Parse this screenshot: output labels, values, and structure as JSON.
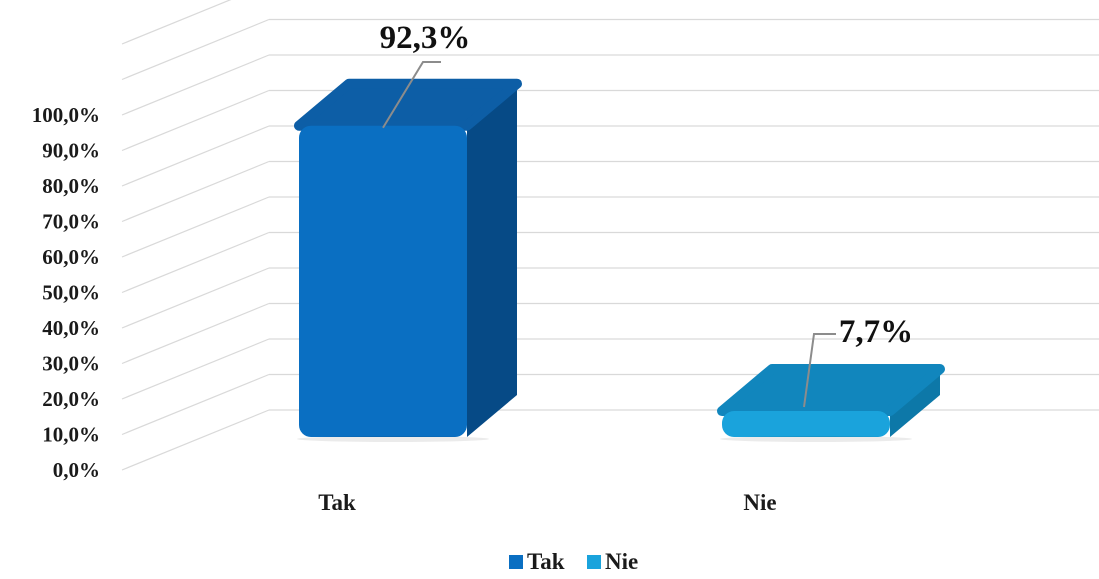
{
  "chart_data": {
    "type": "bar",
    "title": "",
    "xlabel": "",
    "ylabel": "",
    "categories": [
      "Tak",
      "Nie"
    ],
    "values": [
      92.3,
      7.7
    ],
    "value_labels": [
      "92,3%",
      "7,7%"
    ],
    "ylim": [
      0,
      100
    ],
    "yticks": [
      0,
      10,
      20,
      30,
      40,
      50,
      60,
      70,
      80,
      90,
      100
    ],
    "ytick_labels": [
      "0,0%",
      "10,0%",
      "20,0%",
      "30,0%",
      "40,0%",
      "50,0%",
      "60,0%",
      "70,0%",
      "80,0%",
      "90,0%",
      "100,0%"
    ],
    "grid": true,
    "style": "3d-column",
    "legend": {
      "position": "bottom",
      "entries": [
        {
          "label": "Tak",
          "color": "#0a6fc2"
        },
        {
          "label": "Nie",
          "color": "#1aa3dc"
        }
      ]
    },
    "colors": {
      "Tak": {
        "front": "#0a6fc2",
        "side": "#064a86",
        "top": "#0d5ea6"
      },
      "Nie": {
        "front": "#1aa3dc",
        "side": "#0d78a8",
        "top": "#1186bd"
      }
    }
  }
}
